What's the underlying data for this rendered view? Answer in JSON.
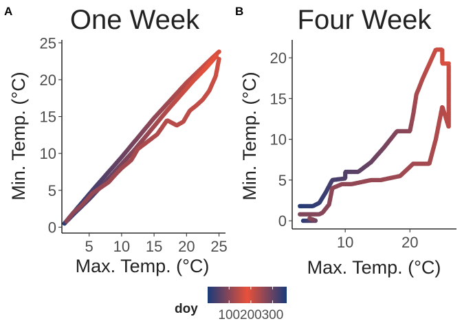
{
  "figure": {
    "legend": {
      "title": "doy",
      "ticks": [
        100,
        200,
        300
      ],
      "tick_labels": [
        "100",
        "200",
        "300"
      ],
      "range": [
        1,
        365
      ],
      "gradient": [
        {
          "at": 0.0,
          "color": "#1a3a7a"
        },
        {
          "at": 0.5,
          "color": "#e8513a"
        },
        {
          "at": 1.0,
          "color": "#1a3a7a"
        }
      ]
    }
  },
  "chart_data": [
    {
      "type": "scatter",
      "panel_label": "A",
      "title": "One Week",
      "xlabel": "Max. Temp. (°C)",
      "ylabel": "Min. Temp. (°C)",
      "xlim": [
        0.8,
        26.0
      ],
      "ylim": [
        -0.8,
        25.4
      ],
      "xticks": [
        5,
        10,
        15,
        20,
        25
      ],
      "yticks": [
        0,
        5,
        10,
        15,
        20,
        25
      ],
      "grid": false,
      "color_by": "doy",
      "segments": [
        {
          "name": "",
          "doy_range": [
            355,
            200
          ],
          "points": [
            [
              1.2,
              0.5
            ],
            [
              3,
              2.4
            ],
            [
              6,
              5.5
            ],
            [
              10,
              9.5
            ],
            [
              15,
              14.8
            ],
            [
              20,
              19.6
            ],
            [
              22,
              21.3
            ],
            [
              24,
              23
            ],
            [
              25,
              23.8
            ]
          ]
        },
        {
          "name": "",
          "doy_range": [
            20,
            190
          ],
          "points": [
            [
              1.3,
              0.6
            ],
            [
              3,
              2.1
            ],
            [
              5,
              3.8
            ],
            [
              8,
              6.6
            ],
            [
              12,
              10.5
            ],
            [
              17,
              15.8
            ],
            [
              21,
              19.8
            ],
            [
              23,
              21.6
            ],
            [
              24.6,
              23.2
            ]
          ]
        },
        {
          "name": "",
          "doy_range": [
            205,
            265
          ],
          "points": [
            [
              25,
              22.8
            ],
            [
              24.5,
              20.5
            ],
            [
              23.5,
              18.5
            ],
            [
              22.5,
              17.3
            ],
            [
              21.5,
              16.5
            ],
            [
              20.5,
              15.8
            ],
            [
              19.5,
              14.3
            ],
            [
              18.5,
              13.8
            ],
            [
              17,
              14.5
            ],
            [
              15.5,
              12.6
            ],
            [
              14,
              11.6
            ],
            [
              12.5,
              10.6
            ],
            [
              11.5,
              9.1
            ],
            [
              10,
              8
            ],
            [
              9,
              7.1
            ],
            [
              8,
              6.1
            ],
            [
              7,
              5.5
            ],
            [
              5.5,
              4.6
            ],
            [
              4,
              3.1
            ],
            [
              2.5,
              1.9
            ],
            [
              1.5,
              0.8
            ]
          ]
        }
      ]
    },
    {
      "type": "scatter",
      "panel_label": "B",
      "title": "Four Week",
      "xlabel": "Max. Temp. (°C)",
      "ylabel": "Min. Temp. (°C)",
      "xlim": [
        1.8,
        27.2
      ],
      "ylim": [
        -1.0,
        22.2
      ],
      "xticks": [
        10,
        20
      ],
      "yticks": [
        0,
        5,
        10,
        15,
        20
      ],
      "grid": false,
      "color_by": "doy",
      "segments": [
        {
          "name": "",
          "doy_range": [
            355,
            195
          ],
          "points": [
            [
              3,
              1.8
            ],
            [
              5,
              1.8
            ],
            [
              6,
              2.2
            ],
            [
              7,
              3.5
            ],
            [
              8,
              5
            ],
            [
              10,
              5.2
            ],
            [
              10,
              6
            ],
            [
              12,
              6
            ],
            [
              14,
              7.2
            ],
            [
              16,
              9
            ],
            [
              18,
              11
            ],
            [
              20,
              11
            ],
            [
              20.5,
              13
            ],
            [
              21,
              15.5
            ],
            [
              22,
              17.5
            ],
            [
              24,
              21
            ],
            [
              25,
              21
            ],
            [
              25,
              19.3
            ],
            [
              26,
              19.3
            ]
          ]
        },
        {
          "name": "",
          "doy_range": [
            15,
            100
          ],
          "points": [
            [
              3.5,
              0
            ],
            [
              4,
              0
            ],
            [
              5,
              0
            ],
            [
              5.5,
              0
            ],
            [
              4.5,
              0.3
            ]
          ]
        },
        {
          "name": "",
          "doy_range": [
            210,
            275
          ],
          "points": [
            [
              26,
              19
            ],
            [
              26,
              17
            ],
            [
              26,
              15.5
            ],
            [
              26,
              12
            ],
            [
              26,
              11.5
            ],
            [
              25,
              14
            ],
            [
              24,
              10
            ],
            [
              23,
              7
            ],
            [
              20.5,
              7
            ],
            [
              18.5,
              5.5
            ],
            [
              15.5,
              5
            ],
            [
              14,
              5
            ],
            [
              11,
              4.5
            ],
            [
              9.5,
              4.5
            ],
            [
              8,
              4
            ],
            [
              7.5,
              2
            ],
            [
              6.5,
              1
            ],
            [
              6,
              0.8
            ],
            [
              4.5,
              0.8
            ],
            [
              3,
              0.8
            ]
          ]
        }
      ]
    }
  ]
}
